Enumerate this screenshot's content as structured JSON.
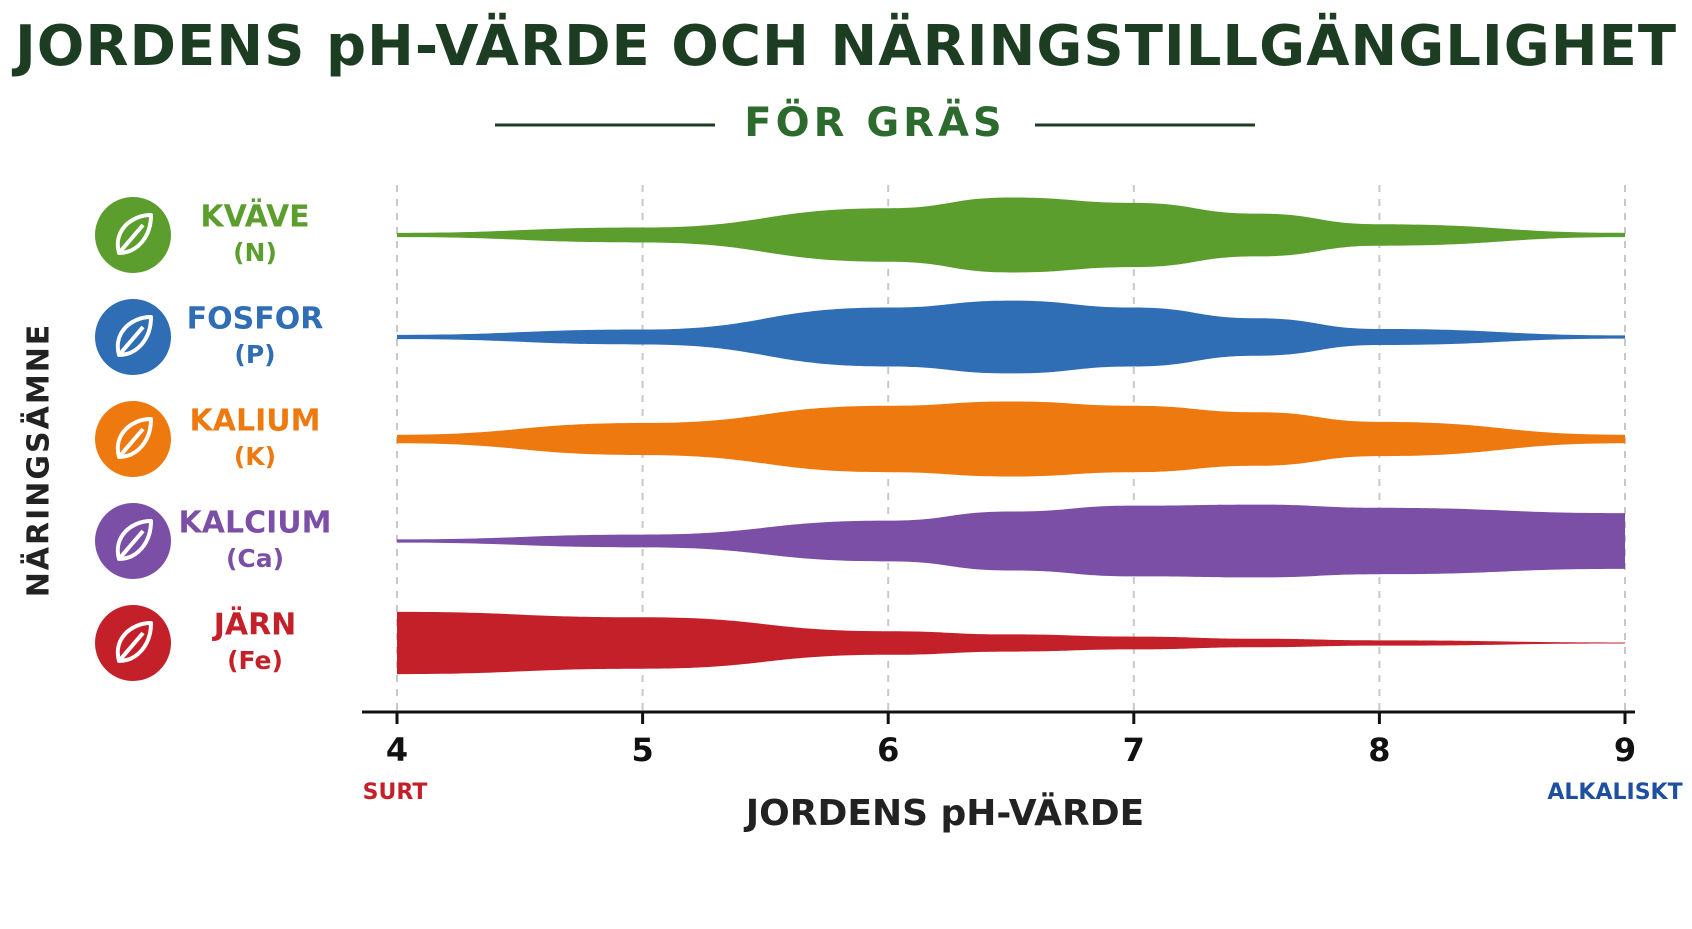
{
  "chart_data": {
    "type": "band",
    "title": "JORDENS pH-VÄRDE OCH NÄRINGSTILLGÄNGLIGHET",
    "subtitle": "FÖR GRÄS",
    "y_label": "NÄRINGSÄMNE",
    "x_label": "JORDENS pH-VÄRDE",
    "x_start_label": "SURT",
    "x_end_label": "ALKALISKT",
    "x": [
      4,
      5,
      6,
      6.5,
      7,
      7.5,
      8,
      9
    ],
    "xlim": [
      4,
      9
    ],
    "xticks": [
      4,
      5,
      6,
      7,
      8,
      9
    ],
    "ylim": [
      0,
      70
    ],
    "grid": true,
    "series": [
      {
        "name": "KVÄVE",
        "symbol": "(N)",
        "color": "#5b9e2e",
        "values": [
          4,
          14,
          50,
          70,
          60,
          40,
          20,
          4
        ]
      },
      {
        "name": "FOSFOR",
        "symbol": "(P)",
        "color": "#2f6db5",
        "values": [
          4,
          14,
          55,
          68,
          55,
          35,
          15,
          3
        ]
      },
      {
        "name": "KALIUM",
        "symbol": "(K)",
        "color": "#ee7a0f",
        "values": [
          8,
          30,
          62,
          70,
          62,
          50,
          32,
          8
        ]
      },
      {
        "name": "KALCIUM",
        "symbol": "(Ca)",
        "color": "#7b4fa6",
        "values": [
          3,
          12,
          38,
          55,
          66,
          68,
          62,
          52
        ]
      },
      {
        "name": "JÄRN",
        "symbol": "(Fe)",
        "color": "#c4202a",
        "values": [
          58,
          48,
          22,
          16,
          12,
          8,
          5,
          1
        ]
      }
    ]
  }
}
